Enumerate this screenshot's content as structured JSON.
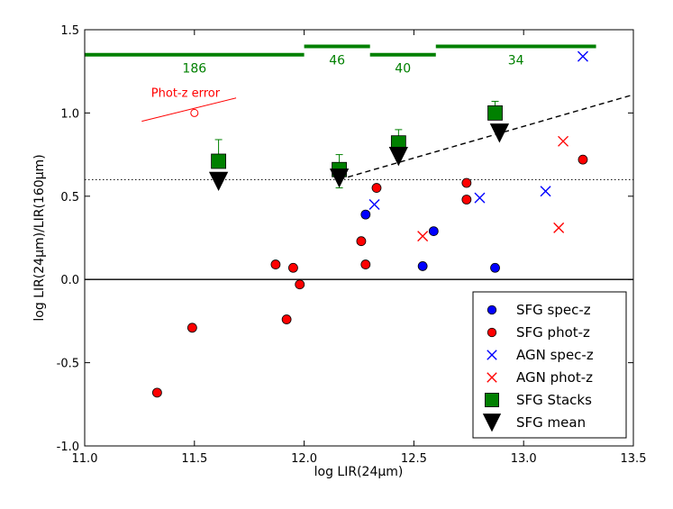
{
  "chart_data": {
    "type": "scatter",
    "title": "",
    "xlabel": "log LIR(24μm)",
    "ylabel": "log LIR(24μm)/LIR(160μm)",
    "xlim": [
      11.0,
      13.5
    ],
    "ylim": [
      -1.0,
      1.5
    ],
    "xticks": [
      "11.0",
      "11.5",
      "12.0",
      "12.5",
      "13.0",
      "13.5"
    ],
    "yticks": [
      "-1.0",
      "-0.5",
      "0.0",
      "0.5",
      "1.0",
      "1.5"
    ],
    "xtick_values": [
      11.0,
      11.5,
      12.0,
      12.5,
      13.0,
      13.5
    ],
    "ytick_values": [
      -1.0,
      -0.5,
      0.0,
      0.5,
      1.0,
      1.5
    ],
    "series": [
      {
        "name": "SFG spec-z",
        "marker": "circle",
        "color": "#0000ff",
        "points": [
          [
            12.28,
            0.39
          ],
          [
            12.59,
            0.29
          ],
          [
            12.54,
            0.08
          ],
          [
            12.87,
            0.07
          ]
        ]
      },
      {
        "name": "SFG phot-z",
        "marker": "circle",
        "color": "#ff0000",
        "points": [
          [
            11.33,
            -0.68
          ],
          [
            11.49,
            -0.29
          ],
          [
            11.87,
            0.09
          ],
          [
            11.92,
            -0.24
          ],
          [
            11.95,
            0.07
          ],
          [
            11.98,
            -0.03
          ],
          [
            12.26,
            0.23
          ],
          [
            12.28,
            0.09
          ],
          [
            12.33,
            0.55
          ],
          [
            12.74,
            0.58
          ],
          [
            12.74,
            0.48
          ],
          [
            13.27,
            0.72
          ]
        ]
      },
      {
        "name": "AGN spec-z",
        "marker": "x",
        "color": "#0000ff",
        "points": [
          [
            12.32,
            0.45
          ],
          [
            12.8,
            0.49
          ],
          [
            13.1,
            0.53
          ],
          [
            13.27,
            1.34
          ]
        ]
      },
      {
        "name": "AGN phot-z",
        "marker": "x",
        "color": "#ff0000",
        "points": [
          [
            12.54,
            0.26
          ],
          [
            13.16,
            0.31
          ],
          [
            13.18,
            0.83
          ]
        ]
      },
      {
        "name": "SFG Stacks",
        "marker": "square",
        "color": "#008000",
        "points": [
          [
            11.61,
            0.71
          ],
          [
            12.16,
            0.66
          ],
          [
            12.43,
            0.82
          ],
          [
            12.87,
            1.0
          ]
        ],
        "yerr_upper": [
          0.13,
          0.09,
          0.08,
          0.07
        ],
        "yerr_lower": [
          0.0,
          0.11,
          0.0,
          0.0
        ]
      },
      {
        "name": "SFG mean",
        "marker": "triangle-down",
        "color": "#000000",
        "points": [
          [
            11.61,
            0.59
          ],
          [
            12.16,
            0.61
          ],
          [
            12.43,
            0.74
          ],
          [
            12.89,
            0.88
          ]
        ]
      }
    ],
    "bins": [
      {
        "x_start": 11.0,
        "x_end": 12.0,
        "y": 1.35,
        "count": "186"
      },
      {
        "x_start": 12.0,
        "x_end": 12.3,
        "y": 1.4,
        "count": "46"
      },
      {
        "x_start": 12.3,
        "x_end": 12.6,
        "y": 1.35,
        "count": "40"
      },
      {
        "x_start": 12.6,
        "x_end": 13.33,
        "y": 1.4,
        "count": "34"
      }
    ],
    "reference_lines": {
      "dotted_y": 0.6,
      "solid_y": 0.0,
      "dashed_line": {
        "from": [
          12.16,
          0.6
        ],
        "to": [
          13.5,
          1.11
        ]
      }
    },
    "phot_z_error": {
      "label": "Phot-z error",
      "center": [
        11.5,
        1.0
      ],
      "from": [
        11.26,
        0.95
      ],
      "to": [
        11.69,
        1.09
      ]
    },
    "legend_position": "lower-right"
  }
}
